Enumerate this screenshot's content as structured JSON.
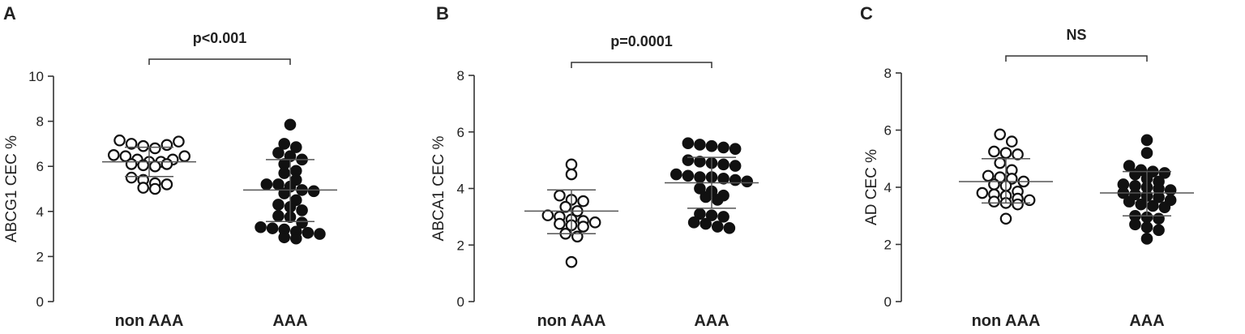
{
  "chart_data": [
    {
      "type": "scatter",
      "panel": "A",
      "ylabel": "ABCG1 CEC %",
      "ylim": [
        0,
        10
      ],
      "yticks": [
        0,
        2,
        4,
        6,
        8,
        10
      ],
      "categories": [
        "non AAA",
        "AAA"
      ],
      "significance": "p<0.001",
      "series": [
        {
          "marker": "open",
          "points": [
            7.15,
            7.0,
            6.9,
            6.8,
            6.95,
            7.1,
            6.5,
            6.45,
            6.3,
            6.2,
            6.1,
            6.05,
            6.0,
            6.1,
            6.2,
            6.3,
            6.45,
            5.5,
            5.4,
            5.25,
            5.2,
            5.05,
            5.0
          ],
          "mean": 6.2,
          "sd_low": 5.55,
          "sd_high": 6.85
        },
        {
          "marker": "filled",
          "points": [
            7.85,
            7.0,
            6.85,
            6.6,
            6.45,
            6.3,
            6.1,
            5.8,
            5.7,
            5.4,
            5.2,
            5.2,
            5.1,
            4.95,
            4.9,
            4.8,
            4.5,
            4.3,
            4.2,
            4.05,
            3.8,
            3.75,
            3.5,
            3.3,
            3.25,
            3.2,
            3.1,
            3.05,
            3.0,
            2.85,
            2.8
          ],
          "mean": 4.95,
          "sd_low": 3.55,
          "sd_high": 6.3
        }
      ]
    },
    {
      "type": "scatter",
      "panel": "B",
      "ylabel": "ABCA1 CEC %",
      "ylim": [
        0,
        8
      ],
      "yticks": [
        0,
        2,
        4,
        6,
        8
      ],
      "categories": [
        "non AAA",
        "AAA"
      ],
      "significance": "p=0.0001",
      "series": [
        {
          "marker": "open",
          "points": [
            4.85,
            4.5,
            3.75,
            3.6,
            3.55,
            3.35,
            3.2,
            3.05,
            3.0,
            2.9,
            2.85,
            2.8,
            2.75,
            2.7,
            2.65,
            2.4,
            2.3,
            1.4
          ],
          "mean": 3.2,
          "sd_low": 2.4,
          "sd_high": 3.95
        },
        {
          "marker": "filled",
          "points": [
            5.6,
            5.55,
            5.5,
            5.45,
            5.4,
            5.0,
            4.95,
            4.9,
            4.85,
            4.8,
            4.5,
            4.45,
            4.4,
            4.4,
            4.35,
            4.3,
            4.25,
            4.0,
            3.9,
            3.75,
            3.7,
            3.6,
            3.1,
            3.05,
            3.0,
            2.8,
            2.75,
            2.65,
            2.6
          ],
          "mean": 4.2,
          "sd_low": 3.3,
          "sd_high": 5.1
        }
      ]
    },
    {
      "type": "scatter",
      "panel": "C",
      "ylabel": "AD CEC %",
      "ylim": [
        0,
        8
      ],
      "yticks": [
        0,
        2,
        4,
        6,
        8
      ],
      "categories": [
        "non AAA",
        "AAA"
      ],
      "significance": "NS",
      "series": [
        {
          "marker": "open",
          "points": [
            5.85,
            5.6,
            5.25,
            5.2,
            5.15,
            4.85,
            4.6,
            4.4,
            4.35,
            4.3,
            4.2,
            4.1,
            4.05,
            3.85,
            3.8,
            3.75,
            3.7,
            3.6,
            3.55,
            3.5,
            3.45,
            3.4,
            2.9
          ],
          "mean": 4.2,
          "sd_low": 3.45,
          "sd_high": 5.0
        },
        {
          "marker": "filled",
          "points": [
            5.65,
            5.2,
            4.75,
            4.6,
            4.55,
            4.5,
            4.45,
            4.3,
            4.2,
            4.1,
            4.05,
            4.0,
            3.95,
            3.9,
            3.8,
            3.75,
            3.7,
            3.65,
            3.55,
            3.5,
            3.4,
            3.35,
            3.3,
            3.0,
            2.95,
            2.9,
            2.7,
            2.6,
            2.5,
            2.2
          ],
          "mean": 3.8,
          "sd_low": 3.0,
          "sd_high": 4.55
        }
      ]
    }
  ]
}
